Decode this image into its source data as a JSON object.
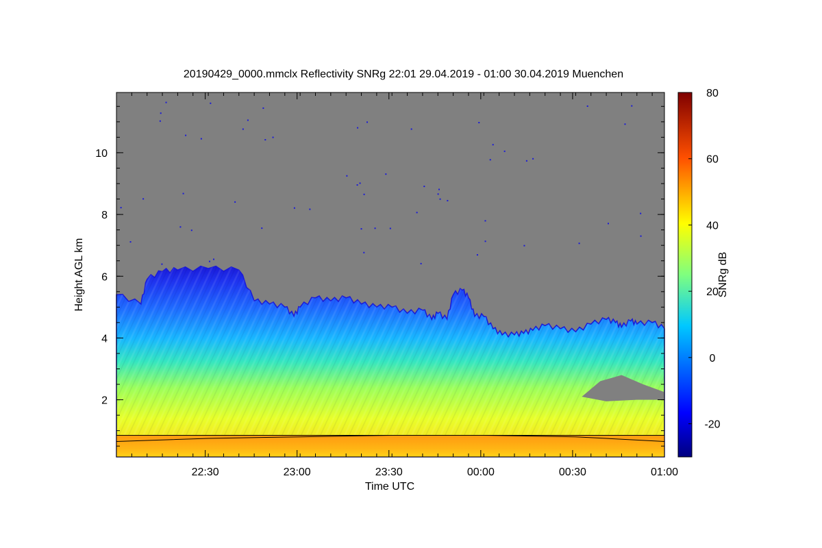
{
  "chart_data": {
    "type": "heatmap",
    "title": "20190429_0000.mmclx Reflectivity SNRg   22:01 29.04.2019 - 01:00 30.04.2019 Muenchen",
    "xlabel": "Time UTC",
    "ylabel": "Height AGL km",
    "x_ticks": [
      "22:30",
      "23:00",
      "23:30",
      "00:00",
      "00:30",
      "01:00"
    ],
    "x_tick_minutes": [
      29,
      59,
      89,
      119,
      149,
      179
    ],
    "xlim_minutes": [
      0,
      179
    ],
    "y_ticks": [
      2,
      4,
      6,
      8,
      10
    ],
    "ylim": [
      0.15,
      11.95
    ],
    "colorbar": {
      "label": "SNRg dB",
      "ticks": [
        -20,
        0,
        20,
        40,
        60,
        80
      ],
      "range": [
        -30,
        80
      ]
    },
    "no_signal_color": "#808080",
    "overlay_lines": [
      {
        "height_km": 0.85
      }
    ],
    "cloud_top_profile": {
      "minutes": [
        0,
        8,
        10,
        15,
        20,
        30,
        40,
        45,
        50,
        55,
        58,
        60,
        65,
        70,
        75,
        80,
        85,
        90,
        95,
        100,
        103,
        105,
        108,
        110,
        113,
        115,
        117,
        120,
        123,
        126,
        130,
        133,
        136,
        140,
        145,
        150,
        155,
        160,
        163,
        165,
        168,
        170,
        175,
        179
      ],
      "top_km": [
        5.4,
        5.1,
        5.9,
        6.15,
        6.2,
        6.25,
        6.2,
        5.2,
        5.1,
        5.0,
        4.7,
        5.0,
        5.3,
        5.2,
        5.3,
        5.1,
        5.0,
        5.0,
        4.8,
        4.9,
        4.6,
        4.8,
        4.6,
        5.4,
        5.55,
        5.3,
        4.7,
        4.7,
        4.3,
        4.1,
        4.1,
        4.15,
        4.25,
        4.4,
        4.3,
        4.2,
        4.45,
        4.6,
        4.5,
        4.35,
        4.55,
        4.45,
        4.5,
        4.3
      ]
    },
    "scale_profile": {
      "minutes": [
        0,
        30,
        60,
        90,
        120,
        150,
        179
      ],
      "value_db": [
        30,
        32,
        33,
        34,
        34,
        33,
        30
      ]
    }
  }
}
